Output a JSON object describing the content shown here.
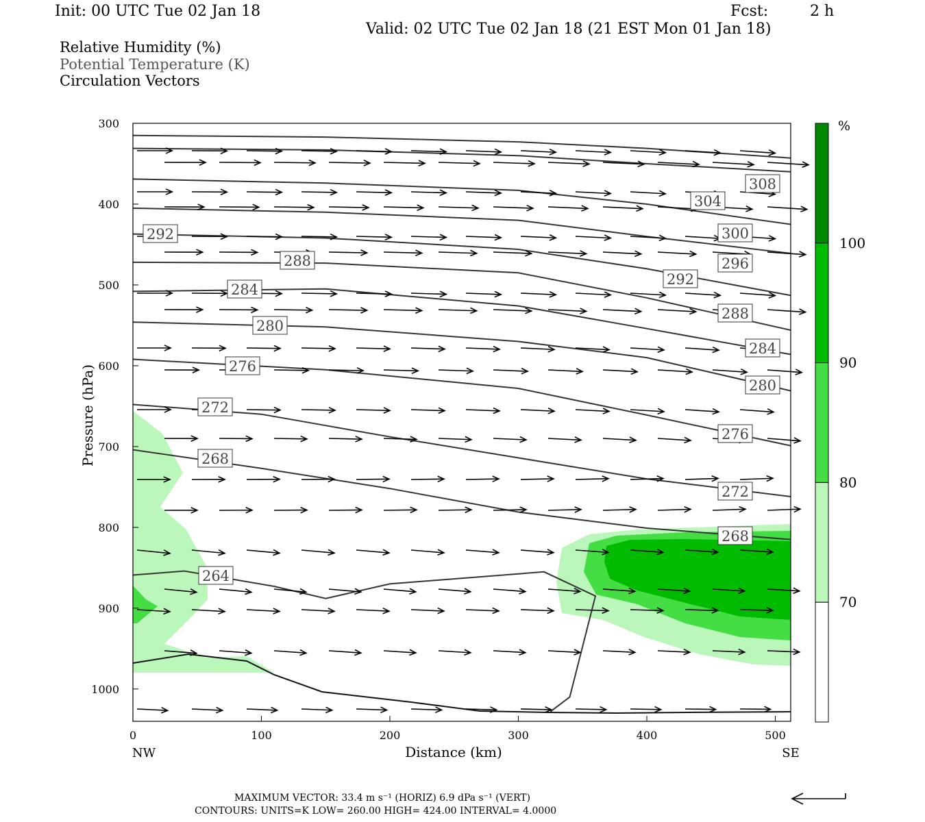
{
  "header": {
    "init": "Init: 00 UTC Tue 02 Jan 18",
    "fcst_label": "Fcst:",
    "fcst_value": "2 h",
    "valid": "Valid: 02 UTC Tue 02 Jan 18 (21 EST Mon 01 Jan 18)"
  },
  "legend": {
    "line1": "Relative Humidity (%)",
    "line2": "Potential Temperature (K)",
    "line3": "Circulation Vectors"
  },
  "chart_data": {
    "type": "cross-section",
    "xlabel": "Distance (km)",
    "ylabel": "Pressure (hPa)",
    "xlim": [
      0,
      512
    ],
    "ylim_pressure": [
      300,
      1040
    ],
    "x_ticks": [
      "0",
      "100",
      "200",
      "300",
      "400",
      "500"
    ],
    "y_ticks": [
      "300",
      "400",
      "500",
      "600",
      "700",
      "800",
      "900",
      "1000"
    ],
    "x_end_labels": {
      "left": "NW",
      "right": "SE"
    },
    "colorbar": {
      "unit": "%",
      "levels": [
        "70",
        "80",
        "90",
        "100"
      ],
      "colors": [
        "#ffffff",
        "#bbf7bb",
        "#44dd44",
        "#00bb00",
        "#008800"
      ]
    },
    "theta_contours": [
      {
        "label": "308",
        "points": [
          [
            0,
            315
          ],
          [
            150,
            317
          ],
          [
            300,
            323
          ],
          [
            400,
            331
          ],
          [
            512,
            343
          ]
        ]
      },
      {
        "label": "304",
        "points": [
          [
            0,
            331
          ],
          [
            150,
            333
          ],
          [
            300,
            340
          ],
          [
            400,
            350
          ],
          [
            512,
            360
          ]
        ]
      },
      {
        "label": "300",
        "points": [
          [
            0,
            369
          ],
          [
            150,
            374
          ],
          [
            300,
            383
          ],
          [
            400,
            400
          ],
          [
            512,
            425
          ]
        ]
      },
      {
        "label": "296",
        "points": [
          [
            0,
            405
          ],
          [
            150,
            410
          ],
          [
            300,
            420
          ],
          [
            400,
            440
          ],
          [
            512,
            461
          ]
        ]
      },
      {
        "label": "292",
        "points": [
          [
            0,
            437
          ],
          [
            150,
            442
          ],
          [
            300,
            456
          ],
          [
            400,
            480
          ],
          [
            512,
            513
          ]
        ]
      },
      {
        "label": "288",
        "points": [
          [
            0,
            472
          ],
          [
            150,
            473
          ],
          [
            300,
            485
          ],
          [
            400,
            516
          ],
          [
            512,
            556
          ]
        ]
      },
      {
        "label": "284",
        "points": [
          [
            0,
            508
          ],
          [
            150,
            505
          ],
          [
            300,
            526
          ],
          [
            400,
            554
          ],
          [
            512,
            586
          ]
        ]
      },
      {
        "label": "280",
        "points": [
          [
            0,
            546
          ],
          [
            150,
            552
          ],
          [
            300,
            570
          ],
          [
            400,
            590
          ],
          [
            512,
            631
          ]
        ]
      },
      {
        "label": "276",
        "points": [
          [
            0,
            592
          ],
          [
            150,
            605
          ],
          [
            300,
            628
          ],
          [
            400,
            661
          ],
          [
            512,
            699
          ]
        ]
      },
      {
        "label": "272",
        "points": [
          [
            0,
            648
          ],
          [
            100,
            660
          ],
          [
            200,
            688
          ],
          [
            300,
            714
          ],
          [
            400,
            740
          ],
          [
            512,
            762
          ]
        ]
      },
      {
        "label": "268",
        "points": [
          [
            0,
            704
          ],
          [
            100,
            727
          ],
          [
            200,
            752
          ],
          [
            300,
            781
          ],
          [
            400,
            801
          ],
          [
            512,
            815
          ]
        ]
      },
      {
        "label": "264",
        "points": [
          [
            0,
            859
          ],
          [
            40,
            854
          ],
          [
            110,
            873
          ],
          [
            150,
            888
          ],
          [
            200,
            870
          ],
          [
            320,
            855
          ],
          [
            360,
            885
          ],
          [
            340,
            1010
          ],
          [
            325,
            1028
          ]
        ]
      }
    ],
    "rh_regions": [
      {
        "level": "70-80",
        "pct": 75
      },
      {
        "level": "80-90",
        "pct": 85
      },
      {
        "level": "90-100",
        "pct": 95
      }
    ]
  },
  "footer": {
    "max_vector": "MAXIMUM VECTOR:  33.4 m s⁻¹ (HORIZ)          6.9 dPa s⁻¹ (VERT)",
    "contours": "CONTOURS:  UNITS=K  LOW=  260.00      HIGH=  424.00      INTERVAL=    4.0000"
  }
}
